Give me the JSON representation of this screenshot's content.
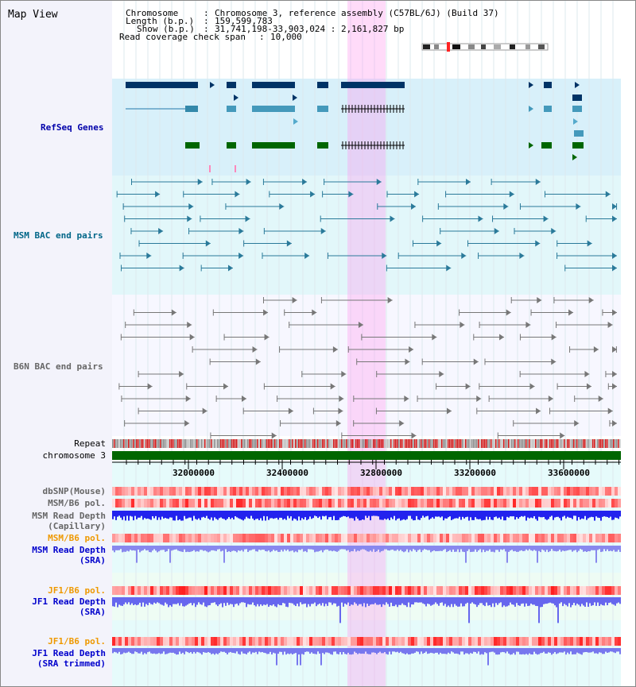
{
  "window": {
    "title": "Map View"
  },
  "info": {
    "chromosome_key": "Chromosome",
    "chromosome_val": "Chromosome 3, reference assembly (C57BL/6J) (Build 37)",
    "length_key": "Length (b.p.)",
    "length_val": "159,599,783",
    "show_key": "Show (b.p.)",
    "show_val": "31,741,198-33,903,024 : 2,161,827 bp",
    "coverage_key": "Read coverage check span",
    "coverage_val": "10,000"
  },
  "tracks": {
    "refseq": "RefSeq Genes",
    "msm_bac": "MSM BAC end pairs",
    "b6n_bac": "B6N BAC end pairs",
    "repeat": "Repeat",
    "chromosome": "chromosome 3",
    "dbsnp": "dbSNP(Mouse)",
    "msm_b6_pol_1": "MSM/B6 pol.",
    "msm_depth_cap_1": "MSM Read Depth",
    "msm_depth_cap_2": "(Capillary)",
    "msm_b6_pol_2": "MSM/B6 pol.",
    "msm_depth_sra_1": "MSM Read Depth",
    "msm_depth_sra_2": "(SRA)",
    "jf1_pol_1": "JF1/B6 pol.",
    "jf1_depth_1": "JF1 Read Depth",
    "jf1_depth_2": "(SRA)",
    "jf1_pol_2": "JF1/B6 pol.",
    "jf1_trim_1": "JF1 Read Depth",
    "jf1_trim_2": "(SRA trimmed)"
  },
  "axis": {
    "ticks": [
      "32000000",
      "32400000",
      "32800000",
      "33200000",
      "33600000"
    ]
  },
  "colors": {
    "refseq_label": "#0000aa",
    "msm_label": "#006688",
    "gray_label": "#666666",
    "orange_label": "#ee9900",
    "blue_label": "#0000cc",
    "highlight": "#ff99ee",
    "chromosome": "#006600"
  }
}
